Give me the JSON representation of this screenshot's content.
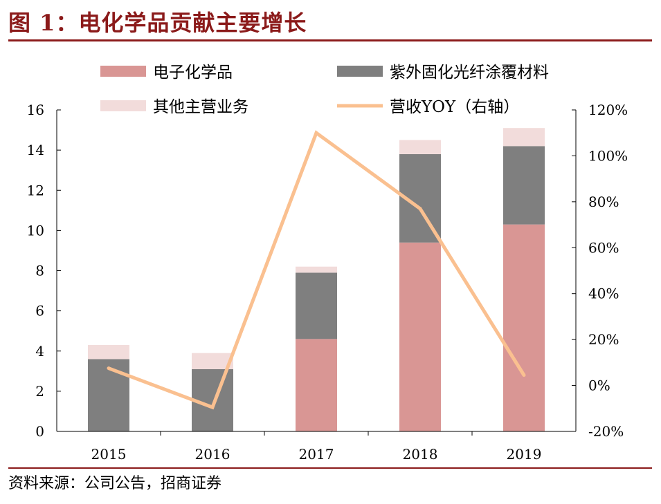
{
  "figure": {
    "title": "图 1：电化学品贡献主要增长",
    "source": "资料来源：公司公告，招商证券"
  },
  "chart_data": {
    "type": "bar",
    "stacked": true,
    "categories": [
      "2015",
      "2016",
      "2017",
      "2018",
      "2019"
    ],
    "series": [
      {
        "name": "电子化学品",
        "type": "bar",
        "axis": "left",
        "color": "#D99694",
        "values": [
          0,
          0,
          4.6,
          9.4,
          10.3
        ]
      },
      {
        "name": "紫外固化光纤涂覆材料",
        "type": "bar",
        "axis": "left",
        "color": "#7F7F7F",
        "values": [
          3.6,
          3.1,
          3.3,
          4.4,
          3.9
        ]
      },
      {
        "name": "其他主营业务",
        "type": "bar",
        "axis": "left",
        "color": "#F2DCDB",
        "values": [
          0.7,
          0.8,
          0.3,
          0.7,
          0.9
        ]
      },
      {
        "name": "营收YOY（右轴）",
        "type": "line",
        "axis": "right",
        "color": "#FAC090",
        "values": [
          7.5,
          -9.5,
          110,
          77,
          4.5
        ]
      }
    ],
    "y_left": {
      "min": 0,
      "max": 16,
      "ticks": [
        "0",
        "2",
        "4",
        "6",
        "8",
        "10",
        "12",
        "14",
        "16"
      ]
    },
    "y_right": {
      "min": -20,
      "max": 120,
      "ticks": [
        "-20%",
        "0%",
        "20%",
        "40%",
        "60%",
        "80%",
        "100%",
        "120%"
      ]
    },
    "grid": false,
    "legend_position": "top"
  }
}
